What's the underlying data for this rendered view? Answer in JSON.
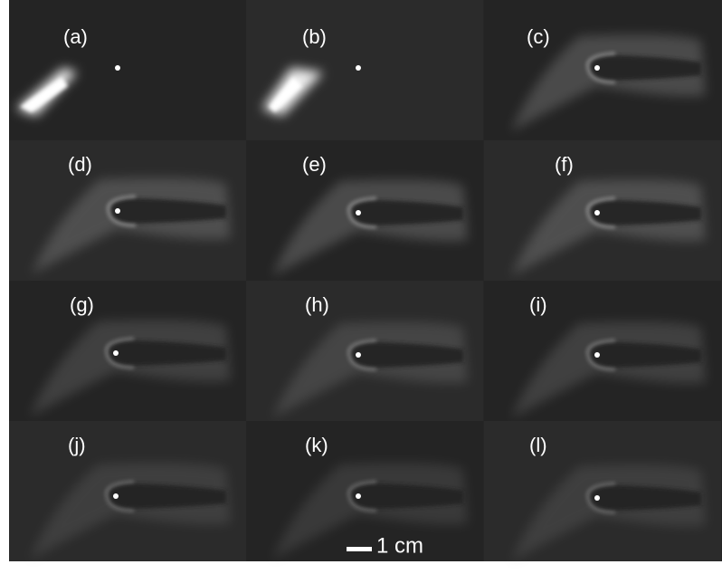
{
  "panels": [
    {
      "label": "(a)"
    },
    {
      "label": "(b)"
    },
    {
      "label": "(c)"
    },
    {
      "label": "(d)"
    },
    {
      "label": "(e)"
    },
    {
      "label": "(f)"
    },
    {
      "label": "(g)"
    },
    {
      "label": "(h)"
    },
    {
      "label": "(i)"
    },
    {
      "label": "(j)"
    },
    {
      "label": "(k)"
    },
    {
      "label": "(l)"
    }
  ],
  "scale_bar": {
    "label": "1 cm"
  }
}
